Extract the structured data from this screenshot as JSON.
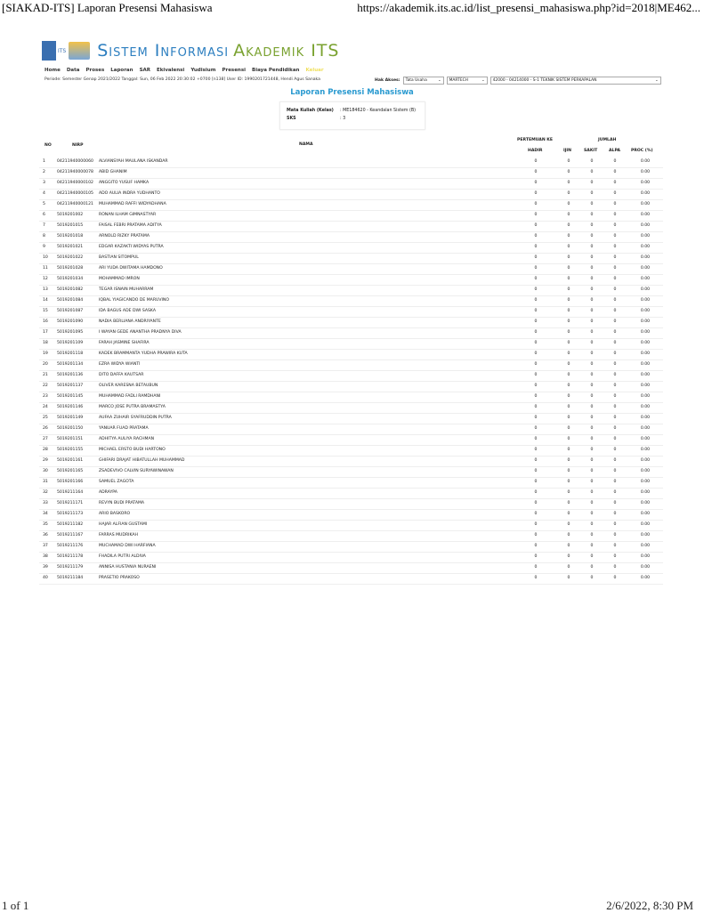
{
  "print_header": {
    "title": "[SIAKAD-ITS] Laporan Presensi Mahasiswa",
    "url": "https://akademik.its.ac.id/list_presensi_mahasiswa.php?id=2018|ME462..."
  },
  "print_footer": {
    "page": "1 of 1",
    "datetime": "2/6/2022, 8:30 PM"
  },
  "brand": {
    "logo_text": "ITS",
    "part1": "Sistem Informasi",
    "part2": "Akademik ITS"
  },
  "menu": [
    "Home",
    "Data",
    "Proses",
    "Laporan",
    "SAR",
    "Ekivalensi",
    "Yudisium",
    "Presensi",
    "Biaya Pendidikan",
    "Keluar"
  ],
  "info_line": "Periode: Semester Genap 2021/2022 Tanggal: Sun, 06 Feb 2022 20:30:02 +0700    [n138] User ID: 1990201721448, Hendi Agus Sanaka",
  "hak_akses": {
    "label": "Hak Akses:",
    "role": "Tata Usaha",
    "unit": "MARTECH",
    "prodi": "42000 - 04214000 - S-1 TEKNIK SISTEM PERKAPALAN"
  },
  "page_title": "Laporan Presensi Mahasiswa",
  "course": {
    "mk_label": "Mata Kuliah (Kelas)",
    "mk_value": ": ME184620 - Keandalan Sistem (B)",
    "sks_label": "SKS",
    "sks_value": ": 3"
  },
  "table": {
    "headers": {
      "no": "NO",
      "nirp": "NIRP",
      "nama": "NAMA",
      "pertemuan": "PERTEMUAN KE",
      "jumlah": "JUMLAH",
      "hadir": "HADIR",
      "ijin": "IJIN",
      "sakit": "SAKIT",
      "alpa": "ALPA",
      "proc": "PROC (%)"
    },
    "rows": [
      [
        "1",
        "04211940000060",
        "ALVIANSYAH MAULANA ISKANDAR",
        "0",
        "0",
        "0",
        "0",
        "0.00"
      ],
      [
        "2",
        "04211940000078",
        "ABID GHANIM",
        "0",
        "0",
        "0",
        "0",
        "0.00"
      ],
      [
        "3",
        "04211940000102",
        "ANGGITO YUSUF HAMKA",
        "0",
        "0",
        "0",
        "0",
        "0.00"
      ],
      [
        "4",
        "04211940000105",
        "ADO AULIA INDRA YUDHANTO",
        "0",
        "0",
        "0",
        "0",
        "0.00"
      ],
      [
        "5",
        "04211940000121",
        "MUHAMMAD RAFFI WIDYADHANA",
        "0",
        "0",
        "0",
        "0",
        "0.00"
      ],
      [
        "6",
        "5019201002",
        "RONAN ILHAM GIMNASTYAR",
        "0",
        "0",
        "0",
        "0",
        "0.00"
      ],
      [
        "7",
        "5019201015",
        "FAISAL FEBRI PRATAMA ADITYA",
        "0",
        "0",
        "0",
        "0",
        "0.00"
      ],
      [
        "8",
        "5019201018",
        "ARNOLD RIZKY PRATAMA",
        "0",
        "0",
        "0",
        "0",
        "0.00"
      ],
      [
        "9",
        "5019201021",
        "EDGAR KAZAKTI WIDYAS PUTRA",
        "0",
        "0",
        "0",
        "0",
        "0.00"
      ],
      [
        "10",
        "5019201022",
        "BASTIAN SITOMPUL",
        "0",
        "0",
        "0",
        "0",
        "0.00"
      ],
      [
        "11",
        "5019201028",
        "ARI YUDA DWITAMA HAMDONO",
        "0",
        "0",
        "0",
        "0",
        "0.00"
      ],
      [
        "12",
        "5019201034",
        "MOHAMMAD IMRON",
        "0",
        "0",
        "0",
        "0",
        "0.00"
      ],
      [
        "13",
        "5019201082",
        "TEGAR ISNAIN MUHARRAM",
        "0",
        "0",
        "0",
        "0",
        "0.00"
      ],
      [
        "14",
        "5019201084",
        "IQBAL YIAGICANDO DE MARUVINO",
        "0",
        "0",
        "0",
        "0",
        "0.00"
      ],
      [
        "15",
        "5019201087",
        "IDA BAGUS ADE DWI SASKA",
        "0",
        "0",
        "0",
        "0",
        "0.00"
      ],
      [
        "16",
        "5019201090",
        "NADIA BERLIANA ANDRIYANTE",
        "0",
        "0",
        "0",
        "0",
        "0.00"
      ],
      [
        "17",
        "5019201095",
        "I WAYAN GEDE ANANTHA PRADNYA DIVA",
        "0",
        "0",
        "0",
        "0",
        "0.00"
      ],
      [
        "18",
        "5019201109",
        "FARAH JASMINE SHAFIRA",
        "0",
        "0",
        "0",
        "0",
        "0.00"
      ],
      [
        "19",
        "5019201118",
        "KADEK BRAMMANTA YUDHA PRAWIRA KUTA",
        "0",
        "0",
        "0",
        "0",
        "0.00"
      ],
      [
        "20",
        "5019201134",
        "EZRA WIDYA WIANTI",
        "0",
        "0",
        "0",
        "0",
        "0.00"
      ],
      [
        "21",
        "5019201136",
        "DITO DAFFA KAUTSAR",
        "0",
        "0",
        "0",
        "0",
        "0.00"
      ],
      [
        "22",
        "5019201137",
        "OLIVER KARESNA BETAUBUN",
        "0",
        "0",
        "0",
        "0",
        "0.00"
      ],
      [
        "23",
        "5019201145",
        "MUHAMMAD FADLI RAMDHANI",
        "0",
        "0",
        "0",
        "0",
        "0.00"
      ],
      [
        "24",
        "5019201146",
        "MARCO JOSE PUTRA BRAMASTYA",
        "0",
        "0",
        "0",
        "0",
        "0.00"
      ],
      [
        "25",
        "5019201149",
        "AUFAA ZUHAIR SYAFRUDDIN PUTRA",
        "0",
        "0",
        "0",
        "0",
        "0.00"
      ],
      [
        "26",
        "5019201150",
        "YANUAR FUAD PRATAMA",
        "0",
        "0",
        "0",
        "0",
        "0.00"
      ],
      [
        "27",
        "5019201151",
        "ADHITYA AULIYA RACHMAN",
        "0",
        "0",
        "0",
        "0",
        "0.00"
      ],
      [
        "28",
        "5019201155",
        "MICHAEL ERSTO BUDI HARTONO",
        "0",
        "0",
        "0",
        "0",
        "0.00"
      ],
      [
        "29",
        "5019201161",
        "GHIFARI DRAJAT HIBATULLAH MUHAMMAD",
        "0",
        "0",
        "0",
        "0",
        "0.00"
      ],
      [
        "30",
        "5019201165",
        "ZSADEVIVO CALVIN SURYAWINAWAN",
        "0",
        "0",
        "0",
        "0",
        "0.00"
      ],
      [
        "31",
        "5019201166",
        "SAMUEL ZAGOTA",
        "0",
        "0",
        "0",
        "0",
        "0.00"
      ],
      [
        "32",
        "5019211164",
        "ADRAYPA",
        "0",
        "0",
        "0",
        "0",
        "0.00"
      ],
      [
        "33",
        "5019211171",
        "REVYN BUDI PRATAMA",
        "0",
        "0",
        "0",
        "0",
        "0.00"
      ],
      [
        "34",
        "5019211173",
        "ARIO BASKORO",
        "0",
        "0",
        "0",
        "0",
        "0.00"
      ],
      [
        "35",
        "5019211182",
        "HAJAR ALFIAN GUSTAMI",
        "0",
        "0",
        "0",
        "0",
        "0.00"
      ],
      [
        "36",
        "5019211167",
        "FARRAS MUDRIKAH",
        "0",
        "0",
        "0",
        "0",
        "0.00"
      ],
      [
        "37",
        "5019211176",
        "MUCHAMAD DWI HARFIANA",
        "0",
        "0",
        "0",
        "0",
        "0.00"
      ],
      [
        "38",
        "5019211178",
        "FHADILA PUTRI ALDIVA",
        "0",
        "0",
        "0",
        "0",
        "0.00"
      ],
      [
        "39",
        "5019211179",
        "ANNISA HUSTANIA NURAENI",
        "0",
        "0",
        "0",
        "0",
        "0.00"
      ],
      [
        "40",
        "5019211184",
        "PRASETIO PRAKOSO",
        "0",
        "0",
        "0",
        "0",
        "0.00"
      ]
    ]
  }
}
